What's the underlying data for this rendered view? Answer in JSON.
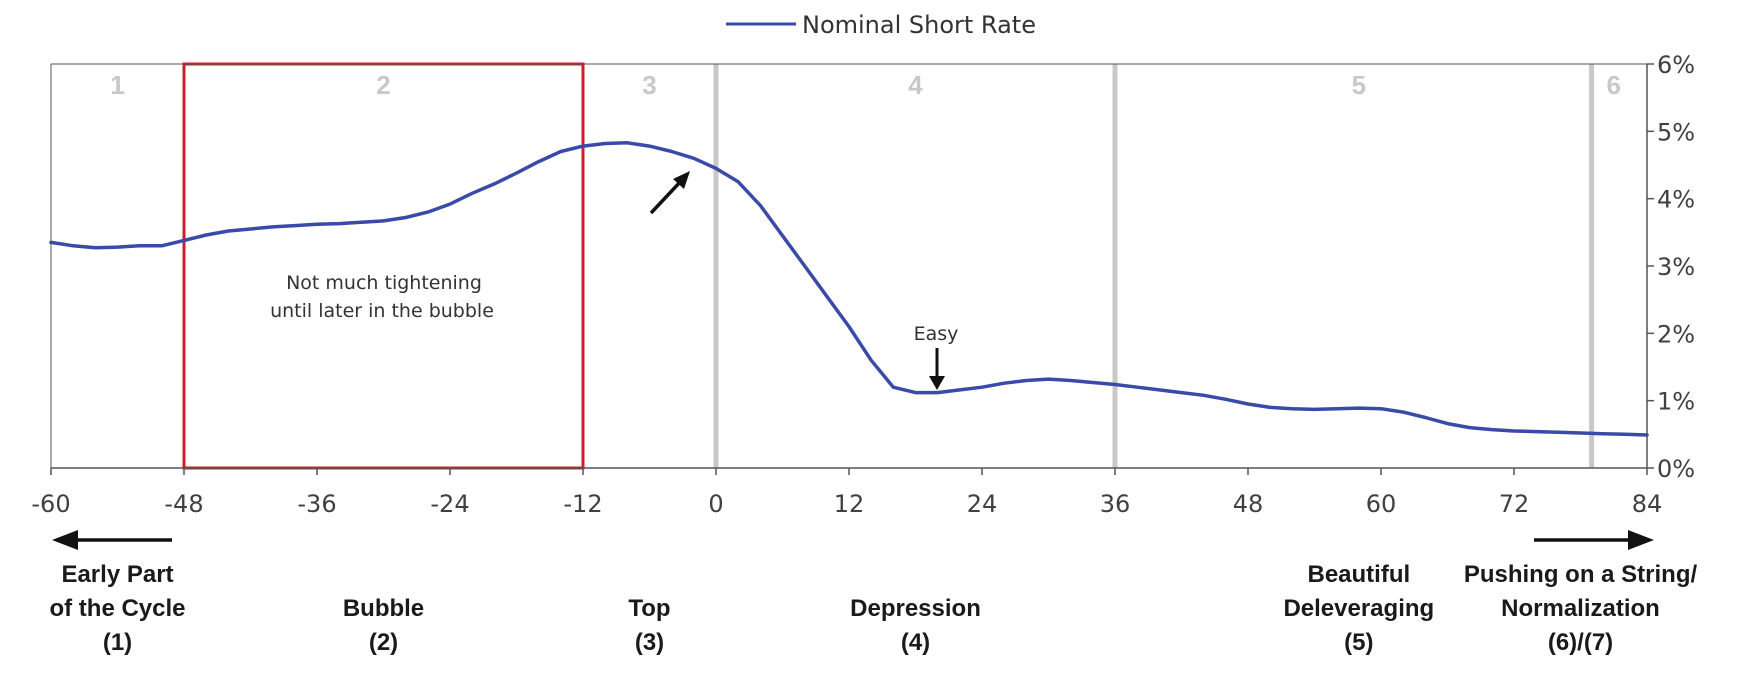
{
  "chart_data": {
    "type": "line",
    "series": [
      {
        "name": "Nominal Short Rate",
        "color": "#3a4aa8",
        "x": [
          -60,
          -58,
          -56,
          -54,
          -52,
          -50,
          -48,
          -46,
          -44,
          -42,
          -40,
          -38,
          -36,
          -34,
          -32,
          -30,
          -28,
          -26,
          -24,
          -22,
          -20,
          -18,
          -16,
          -14,
          -12,
          -10,
          -8,
          -6,
          -4,
          -2,
          0,
          2,
          4,
          6,
          8,
          10,
          12,
          14,
          16,
          18,
          20,
          22,
          24,
          26,
          28,
          30,
          32,
          34,
          36,
          38,
          40,
          42,
          44,
          46,
          48,
          50,
          52,
          54,
          56,
          58,
          60,
          62,
          64,
          66,
          68,
          70,
          72,
          74,
          76,
          78,
          80,
          82,
          84
        ],
        "y": [
          3.35,
          3.3,
          3.27,
          3.28,
          3.3,
          3.3,
          3.38,
          3.46,
          3.52,
          3.55,
          3.58,
          3.6,
          3.62,
          3.63,
          3.65,
          3.67,
          3.72,
          3.8,
          3.92,
          4.08,
          4.22,
          4.38,
          4.55,
          4.7,
          4.78,
          4.82,
          4.83,
          4.78,
          4.7,
          4.6,
          4.45,
          4.25,
          3.9,
          3.45,
          3.0,
          2.55,
          2.1,
          1.6,
          1.2,
          1.12,
          1.12,
          1.16,
          1.2,
          1.26,
          1.3,
          1.32,
          1.3,
          1.27,
          1.24,
          1.2,
          1.16,
          1.12,
          1.08,
          1.02,
          0.95,
          0.9,
          0.88,
          0.87,
          0.88,
          0.89,
          0.88,
          0.83,
          0.75,
          0.66,
          0.6,
          0.57,
          0.55,
          0.54,
          0.53,
          0.52,
          0.51,
          0.5,
          0.49
        ]
      }
    ],
    "xlim": [
      -60,
      84
    ],
    "ylim": [
      0,
      6
    ],
    "xticks": [
      "-60",
      "-48",
      "-36",
      "-24",
      "-12",
      "0",
      "12",
      "24",
      "36",
      "48",
      "60",
      "72",
      "84"
    ],
    "yticks": [
      "0%",
      "1%",
      "2%",
      "3%",
      "4%",
      "5%",
      "6%"
    ],
    "legend_position": "top",
    "grid": false,
    "phase_dividers_x": [
      0,
      36,
      79
    ],
    "phase_numbers": [
      {
        "label": "1",
        "x": -54
      },
      {
        "label": "2",
        "x": -30
      },
      {
        "label": "3",
        "x": -6
      },
      {
        "label": "4",
        "x": 18
      },
      {
        "label": "5",
        "x": 58
      },
      {
        "label": "6",
        "x": 81
      }
    ],
    "highlight_box_x": [
      -48,
      -12
    ],
    "highlight_color": "#cc1f28",
    "annotations": {
      "box_text": [
        "Not much tightening",
        "until later in the bubble"
      ],
      "easy_label": "Easy"
    },
    "phase_labels": [
      {
        "lines": [
          "Early Part",
          "of the Cycle",
          "(1)"
        ],
        "x": -54
      },
      {
        "lines": [
          "Bubble",
          "(2)"
        ],
        "x": -30
      },
      {
        "lines": [
          "Top",
          "(3)"
        ],
        "x": -6
      },
      {
        "lines": [
          "Depression",
          "(4)"
        ],
        "x": 18
      },
      {
        "lines": [
          "Beautiful",
          "Deleveraging",
          "(5)"
        ],
        "x": 58
      },
      {
        "lines": [
          "Pushing on a String/",
          "Normalization",
          "(6)/(7)"
        ],
        "x": 78
      }
    ]
  }
}
